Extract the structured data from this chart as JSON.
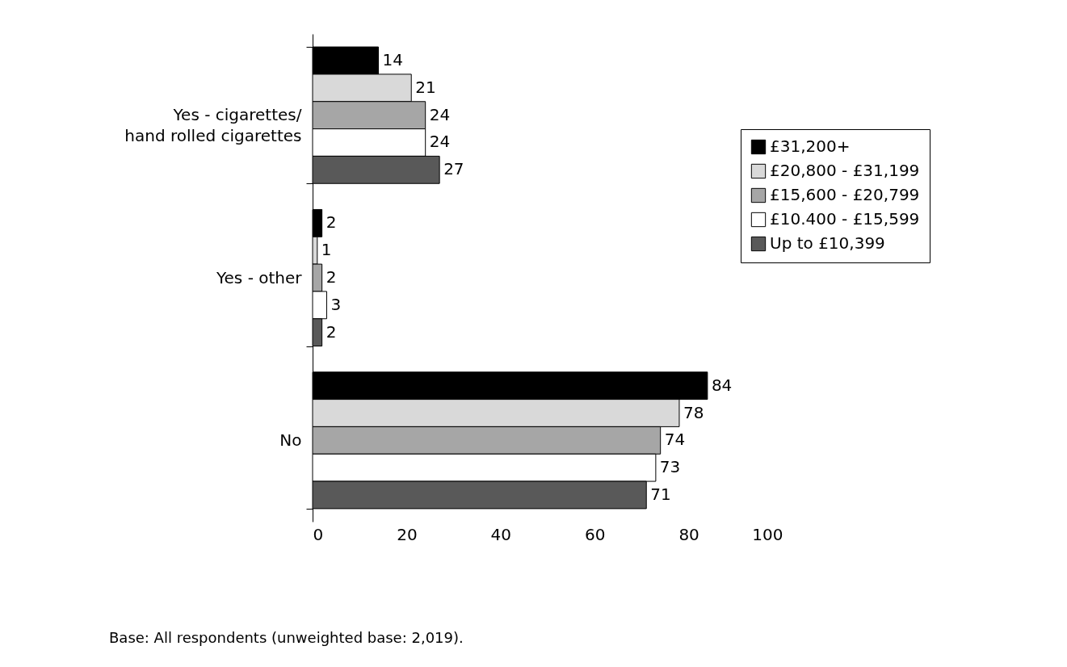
{
  "chart_data": {
    "type": "bar",
    "orientation": "horizontal",
    "categories": [
      "Yes - cigarettes/ hand rolled cigarettes",
      "Yes - other",
      "No"
    ],
    "series": [
      {
        "name": "£31,200+",
        "color": "#000000",
        "values": [
          14,
          2,
          84
        ]
      },
      {
        "name": "£20,800 - £31,199",
        "color": "#d9d9d9",
        "values": [
          21,
          1,
          78
        ]
      },
      {
        "name": "£15,600 - £20,799",
        "color": "#a6a6a6",
        "values": [
          24,
          2,
          74
        ]
      },
      {
        "name": "£10.400 - £15,599",
        "color": "#ffffff",
        "values": [
          24,
          3,
          73
        ]
      },
      {
        "name": "Up to £10,399",
        "color": "#595959",
        "values": [
          27,
          2,
          71
        ]
      }
    ],
    "xlim": [
      0,
      100
    ],
    "xticks": [
      0,
      20,
      40,
      60,
      80,
      100
    ],
    "data_labels": true,
    "legend": "right",
    "grid": false,
    "annotations": [
      "Base: All respondents (unweighted base: 2,019)."
    ]
  }
}
